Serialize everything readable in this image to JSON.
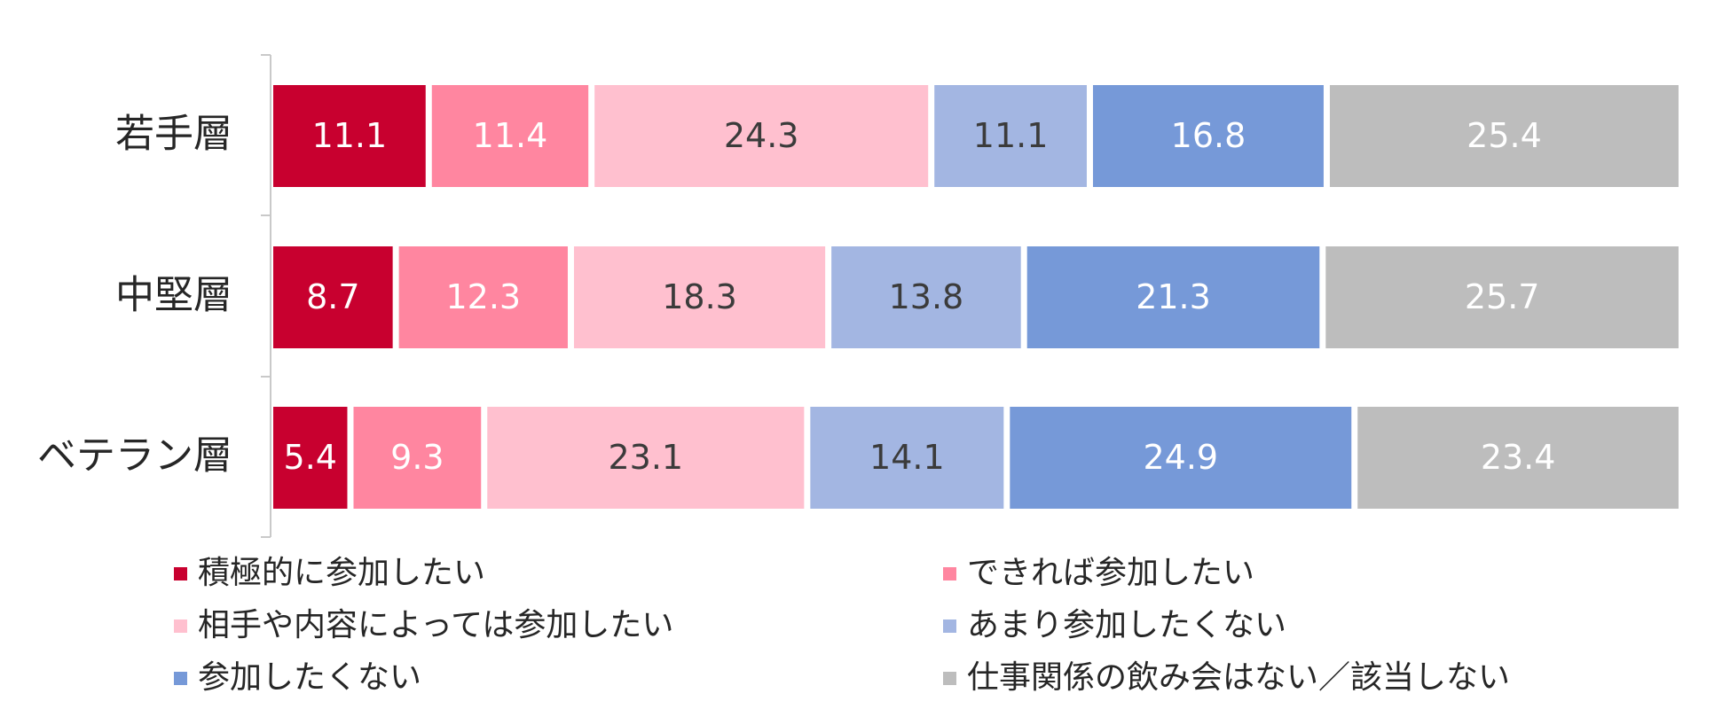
{
  "chart_data": {
    "type": "bar",
    "orientation": "horizontal",
    "stacked": true,
    "categories": [
      "若手層",
      "中堅層",
      "ベテラン層"
    ],
    "series": [
      {
        "name": "積極的に参加したい",
        "values": [
          11.1,
          8.7,
          5.4
        ],
        "color": "#c8002f",
        "label_color": "#ffffff"
      },
      {
        "name": "できれば参加したい",
        "values": [
          11.4,
          12.3,
          9.3
        ],
        "color": "#ff86a0",
        "label_color": "#ffffff"
      },
      {
        "name": "相手や内容によっては参加したい",
        "values": [
          24.3,
          18.3,
          23.1
        ],
        "color": "#ffc0cf",
        "label_color": "#3b3b3b"
      },
      {
        "name": "あまり参加したくない",
        "values": [
          11.1,
          13.8,
          14.1
        ],
        "color": "#a3b6e2",
        "label_color": "#3b3b3b"
      },
      {
        "name": "参加したくない",
        "values": [
          16.8,
          21.3,
          24.9
        ],
        "color": "#7699d8",
        "label_color": "#ffffff"
      },
      {
        "name": "仕事関係の飲み会はない／該当しない",
        "values": [
          25.4,
          25.7,
          23.4
        ],
        "color": "#bdbdbd",
        "label_color": "#ffffff"
      }
    ],
    "value_labels": true,
    "legend_position": "bottom",
    "legend_columns": 2,
    "grid": false
  }
}
